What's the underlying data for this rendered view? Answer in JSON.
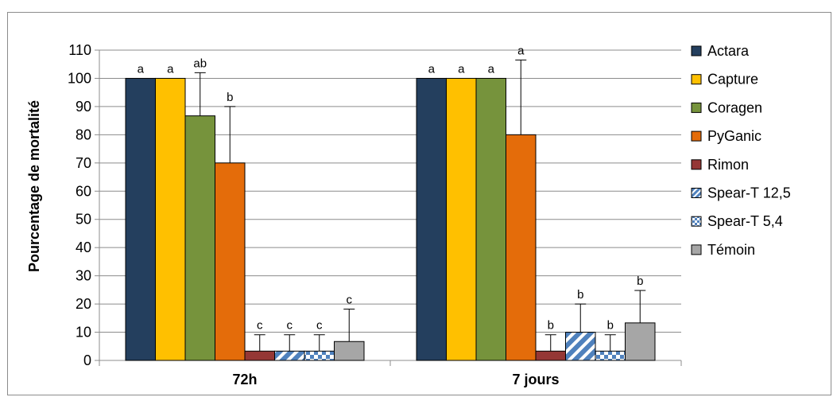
{
  "chart_data": {
    "type": "bar",
    "title": "",
    "xlabel": "",
    "ylabel": "Pourcentage de mortalité",
    "ylim": [
      0,
      110
    ],
    "yticks": [
      0,
      10,
      20,
      30,
      40,
      50,
      60,
      70,
      80,
      90,
      100,
      110
    ],
    "grid": true,
    "legend_position": "right",
    "categories": [
      "72h",
      "7 jours"
    ],
    "series": [
      {
        "name": "Actara",
        "color": "#243f5e",
        "pattern": "solid",
        "values": [
          100,
          100
        ],
        "errors": [
          0,
          0
        ],
        "letters": [
          "a",
          "a"
        ]
      },
      {
        "name": "Capture",
        "color": "#ffc000",
        "pattern": "solid",
        "values": [
          100,
          100
        ],
        "errors": [
          0,
          0
        ],
        "letters": [
          "a",
          "a"
        ]
      },
      {
        "name": "Coragen",
        "color": "#76933c",
        "pattern": "solid",
        "values": [
          86.7,
          100
        ],
        "errors": [
          15.3,
          0
        ],
        "letters": [
          "ab",
          "a"
        ]
      },
      {
        "name": "PyGanic",
        "color": "#e46c0a",
        "pattern": "solid",
        "values": [
          70,
          80
        ],
        "errors": [
          20,
          26.5
        ],
        "letters": [
          "b",
          "a"
        ]
      },
      {
        "name": "Rimon",
        "color": "#953735",
        "pattern": "solid",
        "values": [
          3.3,
          3.3
        ],
        "errors": [
          5.8,
          5.8
        ],
        "letters": [
          "c",
          "b"
        ]
      },
      {
        "name": "Spear-T 12,5",
        "color": "#4f81bd",
        "pattern": "diagonal",
        "values": [
          3.3,
          10
        ],
        "errors": [
          5.8,
          10
        ],
        "letters": [
          "c",
          "b"
        ]
      },
      {
        "name": "Spear-T 5,4",
        "color": "#4f81bd",
        "pattern": "checker",
        "values": [
          3.3,
          3.3
        ],
        "errors": [
          5.8,
          5.8
        ],
        "letters": [
          "c",
          "b"
        ]
      },
      {
        "name": "Témoin",
        "color": "#a6a6a6",
        "pattern": "solid",
        "values": [
          6.7,
          13.3
        ],
        "errors": [
          11.5,
          11.5
        ],
        "letters": [
          "c",
          "b"
        ]
      }
    ]
  }
}
